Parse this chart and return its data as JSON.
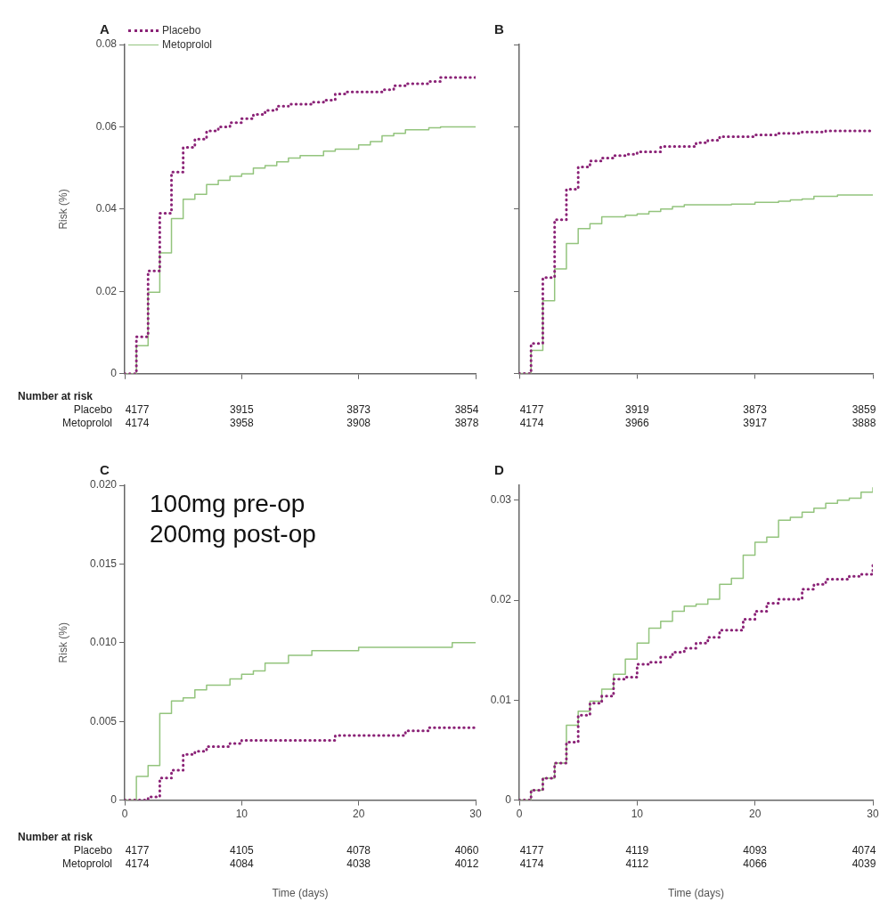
{
  "chart_data": [
    {
      "type": "step",
      "title": "A",
      "ylabel": "Risk (%)",
      "legend": "top left",
      "tick_labels": "y",
      "xlim": [
        0,
        30
      ],
      "xticks": [
        {
          "value": 0,
          "label": null
        },
        {
          "value": 10,
          "label": null
        },
        {
          "value": 20,
          "label": null
        },
        {
          "value": 30,
          "label": null
        }
      ],
      "ylim": [
        0,
        0.08
      ],
      "yticks": [
        0,
        0.02,
        0.04,
        0.06,
        0.08
      ],
      "series": [
        {
          "name": "Placebo",
          "color": "#8b2377",
          "line_style": "dotted",
          "x": [
            0,
            1,
            2,
            3,
            4,
            5,
            6,
            7,
            8,
            9,
            10,
            11,
            12,
            13,
            14,
            16,
            17,
            18,
            19,
            22,
            23,
            24,
            26,
            27,
            30
          ],
          "values": [
            0,
            0.009,
            0.025,
            0.039,
            0.049,
            0.055,
            0.057,
            0.059,
            0.06,
            0.061,
            0.062,
            0.063,
            0.064,
            0.065,
            0.0655,
            0.066,
            0.0665,
            0.068,
            0.0685,
            0.069,
            0.07,
            0.0705,
            0.071,
            0.072,
            0.072
          ]
        },
        {
          "name": "Metoprolol",
          "color": "#93c47d",
          "line_style": "solid",
          "x": [
            0,
            1,
            2,
            3,
            4,
            5,
            6,
            7,
            8,
            9,
            10,
            11,
            12,
            13,
            14,
            15,
            17,
            18,
            20,
            21,
            22,
            23,
            24,
            26,
            27,
            30
          ],
          "values": [
            0,
            0.0068,
            0.0198,
            0.0294,
            0.0377,
            0.0424,
            0.0436,
            0.046,
            0.047,
            0.048,
            0.0486,
            0.05,
            0.0506,
            0.0515,
            0.0524,
            0.053,
            0.0541,
            0.0546,
            0.0556,
            0.0564,
            0.0578,
            0.0584,
            0.0593,
            0.0598,
            0.06,
            0.06
          ]
        }
      ],
      "annotations": [
        "Number at risk",
        "Placebo",
        "Metoprolol",
        "4177",
        "3915",
        "3873",
        "3854",
        "4174",
        "3958",
        "3908",
        "3878"
      ]
    },
    {
      "type": "step",
      "title": "B",
      "tick_labels": false,
      "xlim": [
        0,
        30
      ],
      "xticks": [
        {
          "value": 0,
          "label": null
        },
        {
          "value": 10,
          "label": null
        },
        {
          "value": 20,
          "label": null
        },
        {
          "value": 30,
          "label": null
        }
      ],
      "ylim": [
        0,
        0.08
      ],
      "yticks": [
        0,
        0.02,
        0.04,
        0.06,
        0.08
      ],
      "series": [
        {
          "color": "#8b2377",
          "line_style": "dotted",
          "x": [
            0,
            1,
            2,
            3,
            4,
            5,
            6,
            7,
            8,
            9,
            10,
            12,
            15,
            16,
            17,
            20,
            22,
            24,
            26,
            30
          ],
          "values": [
            0,
            0.0073,
            0.0233,
            0.0374,
            0.0448,
            0.0502,
            0.0517,
            0.0524,
            0.053,
            0.0533,
            0.0539,
            0.0552,
            0.0561,
            0.0567,
            0.0576,
            0.058,
            0.0584,
            0.0587,
            0.059,
            0.059
          ]
        },
        {
          "color": "#93c47d",
          "line_style": "solid",
          "x": [
            0,
            1,
            2,
            3,
            4,
            5,
            6,
            7,
            9,
            10,
            11,
            12,
            13,
            14,
            18,
            20,
            22,
            23,
            24,
            25,
            27,
            30
          ],
          "values": [
            0,
            0.0056,
            0.0177,
            0.0254,
            0.0316,
            0.0352,
            0.0364,
            0.0381,
            0.0385,
            0.0388,
            0.0394,
            0.04,
            0.0406,
            0.041,
            0.0412,
            0.0416,
            0.0419,
            0.0422,
            0.0424,
            0.0431,
            0.0434,
            0.0434
          ]
        }
      ],
      "annotations": [
        "4177",
        "3919",
        "3873",
        "3859",
        "4174",
        "3966",
        "3917",
        "3888"
      ]
    },
    {
      "type": "step",
      "title": "C",
      "subtitle": "100mg pre-op\n200mg post-op",
      "ylabel": "Risk (%)",
      "xlabel": "Time (days)",
      "xlim": [
        0,
        30
      ],
      "xticks": [
        0,
        10,
        20,
        30
      ],
      "ylim": [
        0,
        0.02
      ],
      "yticks": [
        0,
        0.005,
        {
          "value": 0.01,
          "label": "0.010"
        },
        0.015,
        {
          "value": 0.02,
          "label": "0.020"
        }
      ],
      "series": [
        {
          "color": "#8b2377",
          "line_style": "dotted",
          "x": [
            0,
            2,
            3,
            4,
            5,
            6,
            7,
            9,
            10,
            18,
            24,
            26,
            30
          ],
          "values": [
            0,
            0.0002,
            0.0014,
            0.0019,
            0.0029,
            0.0031,
            0.0034,
            0.0036,
            0.0038,
            0.0041,
            0.0044,
            0.0046,
            0.0046
          ]
        },
        {
          "color": "#93c47d",
          "line_style": "solid",
          "x": [
            0,
            1,
            2,
            3,
            4,
            5,
            6,
            7,
            9,
            10,
            11,
            12,
            14,
            16,
            20,
            28,
            30
          ],
          "values": [
            0,
            0.0015,
            0.0022,
            0.0055,
            0.0063,
            0.0065,
            0.007,
            0.0073,
            0.0077,
            0.008,
            0.0082,
            0.0087,
            0.0092,
            0.0095,
            0.0097,
            0.01,
            0.01
          ]
        }
      ],
      "annotations": [
        "Number at risk",
        "Placebo",
        "Metoprolol",
        "4177",
        "4105",
        "4078",
        "4060",
        "4174",
        "4084",
        "4038",
        "4012"
      ]
    },
    {
      "type": "step",
      "title": "D",
      "xlabel": "Time (days)",
      "xlim": [
        0,
        30
      ],
      "xticks": [
        0,
        10,
        20,
        30
      ],
      "ylim": [
        0,
        0.0315
      ],
      "yticks": [
        0,
        0.01,
        0.02,
        0.03
      ],
      "series": [
        {
          "color": "#8b2377",
          "line_style": "dotted",
          "x": [
            0,
            1,
            2,
            3,
            4,
            5,
            6,
            7,
            8,
            9,
            10,
            11,
            12,
            13,
            14,
            15,
            16,
            17,
            19,
            20,
            21,
            22,
            24,
            25,
            26,
            28,
            29,
            30
          ],
          "values": [
            0,
            0.001,
            0.0022,
            0.0037,
            0.0058,
            0.0085,
            0.0097,
            0.0104,
            0.0121,
            0.0123,
            0.0136,
            0.0138,
            0.0143,
            0.0148,
            0.0152,
            0.0157,
            0.0163,
            0.017,
            0.0181,
            0.0189,
            0.0197,
            0.0201,
            0.0211,
            0.0216,
            0.0221,
            0.0224,
            0.0226,
            0.0235
          ]
        },
        {
          "color": "#93c47d",
          "line_style": "solid",
          "x": [
            0,
            1,
            2,
            3,
            4,
            5,
            6,
            7,
            8,
            9,
            10,
            11,
            12,
            13,
            14,
            15,
            16,
            17,
            18,
            19,
            20,
            21,
            22,
            23,
            24,
            25,
            26,
            27,
            28,
            29,
            30
          ],
          "values": [
            0,
            0.001,
            0.0022,
            0.0037,
            0.0075,
            0.0089,
            0.0099,
            0.0111,
            0.0126,
            0.0141,
            0.0157,
            0.0172,
            0.0179,
            0.0189,
            0.0194,
            0.0196,
            0.0201,
            0.0216,
            0.0222,
            0.0245,
            0.0258,
            0.0263,
            0.028,
            0.0283,
            0.0288,
            0.0292,
            0.0297,
            0.03,
            0.0302,
            0.0308,
            0.0313
          ]
        }
      ],
      "annotations": [
        "4177",
        "4119",
        "4093",
        "4074",
        "4174",
        "4112",
        "4066",
        "4039"
      ]
    }
  ]
}
